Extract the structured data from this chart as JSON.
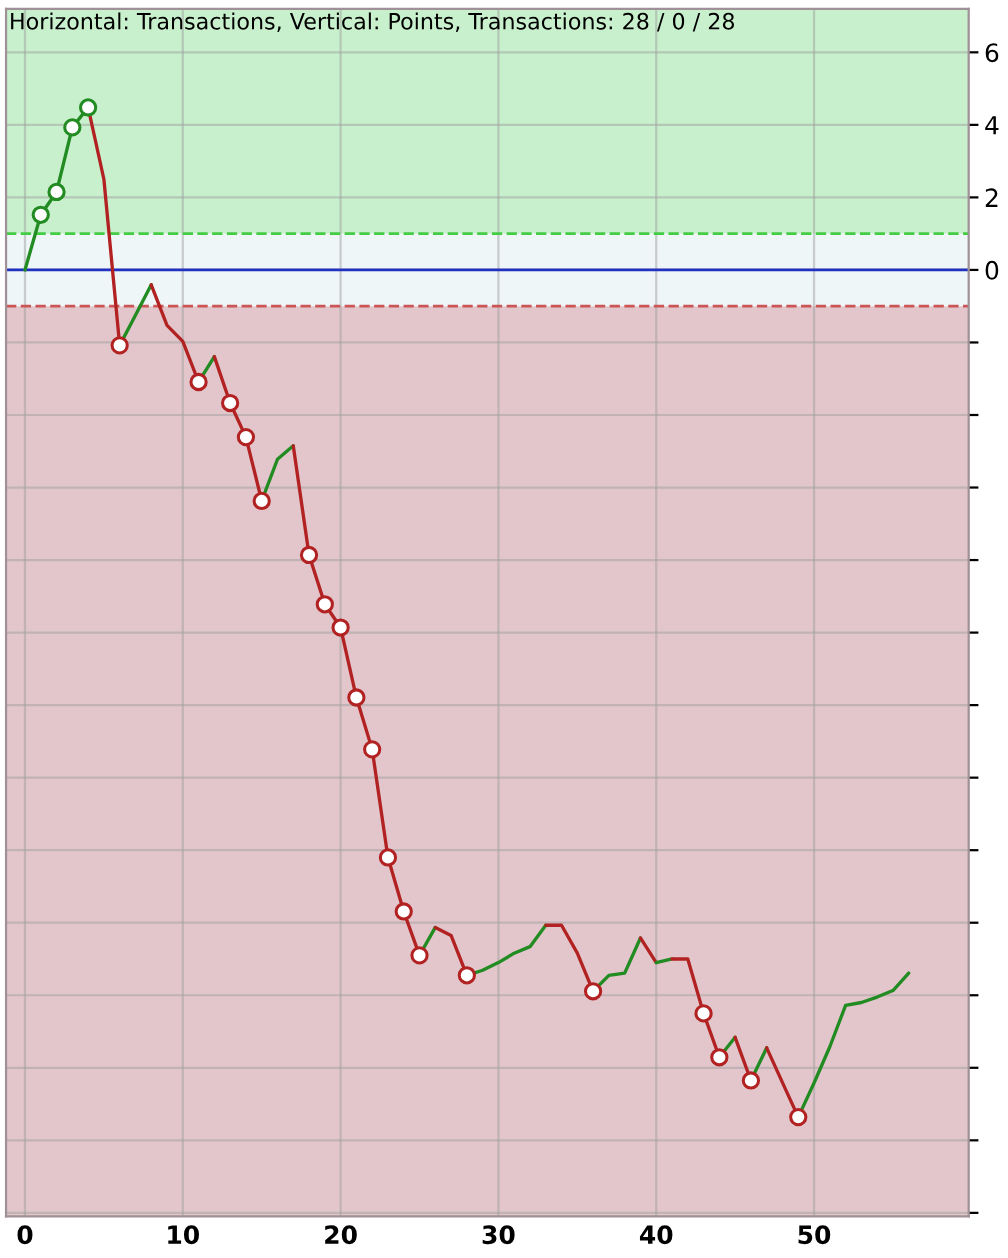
{
  "chart_data": {
    "type": "line",
    "title": "Horizontal: Transactions, Vertical: Points, Transactions: 28 / 0 / 28",
    "series": [
      {
        "color": "#228b22",
        "x": [
          0,
          1,
          2,
          3,
          4
        ],
        "values": [
          0,
          1.52,
          2.15,
          3.93,
          4.48
        ]
      },
      {
        "color": "#b22222",
        "x": [
          4,
          5,
          6
        ],
        "values": [
          4.48,
          2.5,
          -2.08
        ]
      },
      {
        "color": "#228b22",
        "x": [
          6,
          7,
          8
        ],
        "values": [
          -2.08,
          -1.25,
          -0.41
        ]
      },
      {
        "color": "#b22222",
        "x": [
          8,
          9,
          10,
          11
        ],
        "values": [
          -0.41,
          -1.53,
          -1.97,
          -3.09
        ]
      },
      {
        "color": "#228b22",
        "x": [
          11,
          12
        ],
        "values": [
          -3.09,
          -2.39
        ]
      },
      {
        "color": "#b22222",
        "x": [
          12,
          13,
          14,
          15
        ],
        "values": [
          -2.39,
          -3.67,
          -4.61,
          -6.37
        ]
      },
      {
        "color": "#228b22",
        "x": [
          15,
          16,
          17
        ],
        "values": [
          -6.37,
          -5.22,
          -4.85
        ]
      },
      {
        "color": "#b22222",
        "x": [
          17,
          18,
          19,
          20,
          21,
          22,
          23,
          24,
          25
        ],
        "values": [
          -4.85,
          -7.86,
          -9.22,
          -9.86,
          -11.79,
          -13.22,
          -16.2,
          -17.69,
          -18.9
        ]
      },
      {
        "color": "#228b22",
        "x": [
          25,
          26
        ],
        "values": [
          -18.9,
          -18.13
        ]
      },
      {
        "color": "#b22222",
        "x": [
          26,
          27,
          28
        ],
        "values": [
          -18.13,
          -18.35,
          -19.45
        ]
      },
      {
        "color": "#228b22",
        "x": [
          28,
          29,
          30,
          31,
          32,
          33
        ],
        "values": [
          -19.45,
          -19.31,
          -19.1,
          -18.84,
          -18.66,
          -18.07
        ]
      },
      {
        "color": "#b22222",
        "x": [
          33,
          34,
          35,
          36
        ],
        "values": [
          -18.07,
          -18.07,
          -18.84,
          -19.89
        ]
      },
      {
        "color": "#228b22",
        "x": [
          36,
          37,
          38,
          39
        ],
        "values": [
          -19.89,
          -19.45,
          -19.39,
          -18.42
        ]
      },
      {
        "color": "#b22222",
        "x": [
          39,
          40
        ],
        "values": [
          -18.42,
          -19.1
        ]
      },
      {
        "color": "#228b22",
        "x": [
          40,
          41
        ],
        "values": [
          -19.1,
          -19.0
        ]
      },
      {
        "color": "#b22222",
        "x": [
          41,
          42,
          43,
          44
        ],
        "values": [
          -19.0,
          -19.0,
          -20.5,
          -21.71
        ]
      },
      {
        "color": "#228b22",
        "x": [
          44,
          45
        ],
        "values": [
          -21.71,
          -21.16
        ]
      },
      {
        "color": "#b22222",
        "x": [
          45,
          46
        ],
        "values": [
          -21.16,
          -22.35
        ]
      },
      {
        "color": "#228b22",
        "x": [
          46,
          47
        ],
        "values": [
          -22.35,
          -21.45
        ]
      },
      {
        "color": "#b22222",
        "x": [
          47,
          48,
          49
        ],
        "values": [
          -21.45,
          -22.41,
          -23.36
        ]
      },
      {
        "color": "#228b22",
        "x": [
          49,
          50,
          51,
          52,
          53,
          54,
          55,
          56
        ],
        "values": [
          -23.36,
          -22.42,
          -21.42,
          -20.28,
          -20.2,
          -20.05,
          -19.87,
          -19.39
        ]
      },
      {
        "type": "scatter",
        "marker": "circle",
        "color": "#228b22",
        "x": [
          1,
          2,
          3,
          4
        ],
        "values": [
          1.52,
          2.15,
          3.93,
          4.48
        ]
      },
      {
        "type": "scatter",
        "marker": "circle",
        "color": "#b22222",
        "x": [
          6,
          11,
          13,
          14,
          15,
          18,
          19,
          20,
          21,
          22,
          23,
          24,
          25,
          28,
          36,
          43,
          44,
          46,
          49
        ],
        "values": [
          -2.08,
          -3.09,
          -3.67,
          -4.61,
          -6.37,
          -7.86,
          -9.22,
          -9.86,
          -11.79,
          -13.22,
          -16.2,
          -17.69,
          -18.9,
          -19.45,
          -19.89,
          -20.5,
          -21.71,
          -22.35,
          -23.36
        ]
      }
    ],
    "xlim": [
      -1.2,
      59.8
    ],
    "xticks": [
      0,
      10,
      20,
      30,
      40,
      50
    ],
    "ylim": [
      -26.1,
      7.2
    ],
    "yticks": [
      6,
      4,
      2,
      0,
      {
        "value": -2,
        "label": null
      },
      {
        "value": -4,
        "label": null
      },
      {
        "value": -6,
        "label": null
      },
      {
        "value": -8,
        "label": null
      },
      {
        "value": -10,
        "label": null
      },
      {
        "value": -12,
        "label": null
      },
      {
        "value": -14,
        "label": null
      },
      {
        "value": -16,
        "label": null
      },
      {
        "value": -18,
        "label": null
      },
      {
        "value": -20,
        "label": null
      },
      {
        "value": -22,
        "label": null
      },
      {
        "value": -24,
        "label": null
      },
      {
        "value": -26,
        "label": null
      }
    ],
    "bands": [
      {
        "axis": "y",
        "from": 1,
        "to": 7.2,
        "color": "#c8f0cc"
      },
      {
        "axis": "y",
        "from": -1,
        "to": 1,
        "color": "#eef6f8"
      },
      {
        "axis": "y",
        "from": -26.1,
        "to": -1,
        "color": "#e2c6cb"
      }
    ],
    "ref_lines": [
      {
        "axis": "y",
        "value": 0,
        "color": "#2030c0",
        "line_style": "solid"
      },
      {
        "axis": "y",
        "value": 1,
        "color": "#44cc44",
        "line_style": "dashed"
      },
      {
        "axis": "y",
        "value": -1,
        "color": "#cc5555",
        "line_style": "dashed"
      }
    ],
    "grid": true
  }
}
